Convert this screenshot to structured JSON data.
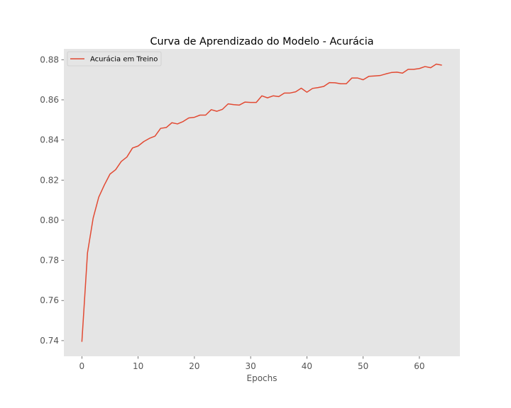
{
  "chart_data": {
    "type": "line",
    "title": "Curva de Aprendizado do Modelo - Acurácia",
    "xlabel": "Epochs",
    "ylabel": "",
    "xlim": [
      -3.2,
      67.2
    ],
    "ylim": [
      0.7322,
      0.8854
    ],
    "xticks": [
      0,
      10,
      20,
      30,
      40,
      50,
      60
    ],
    "xtick_labels": [
      "0",
      "10",
      "20",
      "30",
      "40",
      "50",
      "60"
    ],
    "yticks": [
      0.74,
      0.76,
      0.78,
      0.8,
      0.82,
      0.84,
      0.86,
      0.88
    ],
    "ytick_labels": [
      "0.74",
      "0.76",
      "0.78",
      "0.80",
      "0.82",
      "0.84",
      "0.86",
      "0.88"
    ],
    "grid": false,
    "background": "#e5e5e5",
    "legend_position": "top-left",
    "series": [
      {
        "name": "Acurácia em Treino",
        "color": "#e24a33",
        "x": [
          0,
          1,
          2,
          3,
          4,
          5,
          6,
          7,
          8,
          9,
          10,
          11,
          12,
          13,
          14,
          15,
          16,
          17,
          18,
          19,
          20,
          21,
          22,
          23,
          24,
          25,
          26,
          27,
          28,
          29,
          30,
          31,
          32,
          33,
          34,
          35,
          36,
          37,
          38,
          39,
          40,
          41,
          42,
          43,
          44,
          45,
          46,
          47,
          48,
          49,
          50,
          51,
          52,
          53,
          54,
          55,
          56,
          57,
          58,
          59,
          60,
          61,
          62,
          63,
          64
        ],
        "values": [
          0.7394,
          0.7838,
          0.801,
          0.8115,
          0.8176,
          0.823,
          0.8252,
          0.8293,
          0.8315,
          0.836,
          0.837,
          0.8392,
          0.8408,
          0.8419,
          0.8458,
          0.8462,
          0.8486,
          0.848,
          0.8492,
          0.851,
          0.8513,
          0.8524,
          0.8524,
          0.8551,
          0.8543,
          0.8553,
          0.858,
          0.8576,
          0.8574,
          0.8589,
          0.8587,
          0.8587,
          0.862,
          0.861,
          0.862,
          0.8616,
          0.8634,
          0.8634,
          0.864,
          0.8658,
          0.8638,
          0.8657,
          0.8661,
          0.8667,
          0.8686,
          0.8685,
          0.868,
          0.868,
          0.8709,
          0.8709,
          0.87,
          0.8717,
          0.8719,
          0.8721,
          0.8729,
          0.8736,
          0.8738,
          0.8733,
          0.8752,
          0.8752,
          0.8756,
          0.8766,
          0.876,
          0.8778,
          0.8773
        ]
      }
    ]
  }
}
